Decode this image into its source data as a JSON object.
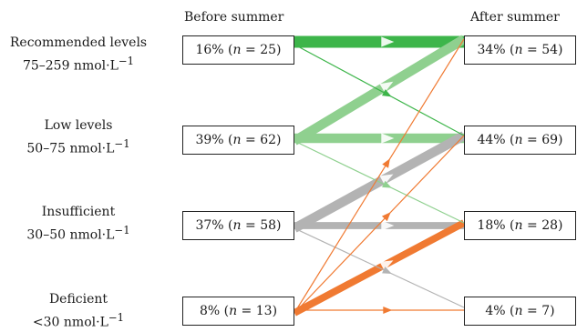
{
  "headers": {
    "before": "Before summer",
    "after": "After summer"
  },
  "categories": [
    {
      "name": "Recommended levels",
      "range": "75–259 nmol·L",
      "exp": "−1",
      "before": {
        "pct": "16%",
        "n": "25"
      },
      "after": {
        "pct": "34%",
        "n": "54"
      }
    },
    {
      "name": "Low levels",
      "range": "50–75 nmol·L",
      "exp": "−1",
      "before": {
        "pct": "39%",
        "n": "62"
      },
      "after": {
        "pct": "44%",
        "n": "69"
      }
    },
    {
      "name": "Insufficient",
      "range": "30–50 nmol·L",
      "exp": "−1",
      "before": {
        "pct": "37%",
        "n": "58"
      },
      "after": {
        "pct": "18%",
        "n": "28"
      }
    },
    {
      "name": "Deficient",
      "range": "<30 nmol·L",
      "exp": "−1",
      "before": {
        "pct": "8%",
        "n": "13"
      },
      "after": {
        "pct": "4%",
        "n": "7"
      }
    }
  ],
  "colors": {
    "recommended": "#3db54a",
    "low": "#8fd08f",
    "insufficient": "#b3b3b3",
    "deficient": "#f07a32"
  },
  "flows": [
    {
      "from": 0,
      "to": 0,
      "color": "recommended",
      "weight": 5
    },
    {
      "from": 0,
      "to": 1,
      "color": "recommended",
      "weight": 1
    },
    {
      "from": 1,
      "to": 0,
      "color": "low",
      "weight": 4
    },
    {
      "from": 1,
      "to": 1,
      "color": "low",
      "weight": 4
    },
    {
      "from": 1,
      "to": 2,
      "color": "low",
      "weight": 1
    },
    {
      "from": 2,
      "to": 1,
      "color": "insufficient",
      "weight": 4
    },
    {
      "from": 2,
      "to": 2,
      "color": "insufficient",
      "weight": 3
    },
    {
      "from": 2,
      "to": 3,
      "color": "insufficient",
      "weight": 1
    },
    {
      "from": 3,
      "to": 0,
      "color": "deficient",
      "weight": 1
    },
    {
      "from": 3,
      "to": 1,
      "color": "deficient",
      "weight": 1
    },
    {
      "from": 3,
      "to": 2,
      "color": "deficient",
      "weight": 3
    },
    {
      "from": 3,
      "to": 3,
      "color": "deficient",
      "weight": 1
    }
  ]
}
